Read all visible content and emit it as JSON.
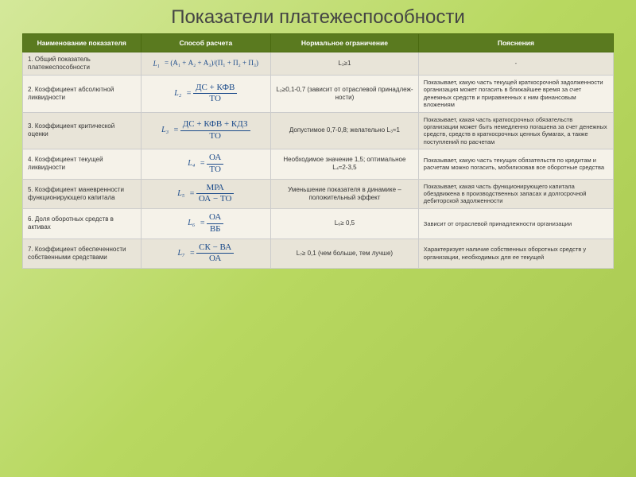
{
  "title": "Показатели платежеспособности",
  "headers": {
    "c1": "Наименование показателя",
    "c2": "Способ расчета",
    "c3": "Нормальное ограничение",
    "c4": "Пояснения"
  },
  "rows": [
    {
      "name": "1. Общий показатель платежеспособности",
      "f_left": "L₁",
      "f_num": "(А₁ + А₂ + А₃)",
      "f_den": "(П₁ + П₂ + П₃)",
      "frac_style": "inline",
      "limit": "L₁≥1",
      "expl": "-",
      "bg": "odd"
    },
    {
      "name": "2. Коэффициент абсолютной ликвидности",
      "f_left": "L₂",
      "f_num": "ДС + КФВ",
      "f_den": "ТО",
      "frac_style": "block",
      "limit": "L₂≥0,1-0,7 (зависит от отраслевой принадлеж-ности)",
      "expl": "Показывает, какую часть текущей краткосрочной задолженности организация может погасить в ближайшее время за счет денежных средств и приравненных к ним финансовым вложениям",
      "bg": "even"
    },
    {
      "name": "3. Коэффициент критической оценки",
      "f_left": "L₃",
      "f_num": "ДС + КФВ + КДЗ",
      "f_den": "ТО",
      "frac_style": "block",
      "limit": "Допустимое 0,7-0,8; желательно L₃≈1",
      "expl": "Показывает, какая часть краткосрочных обязательств организации может быть немедленно погашена за счет денежных средств, средств в краткосрочных ценных бумагах, а также поступлений по расчетам",
      "bg": "odd"
    },
    {
      "name": "4. Коэффициент текущей ликвидности",
      "f_left": "L₄",
      "f_num": "ОА",
      "f_den": "ТО",
      "frac_style": "block",
      "limit": "Необходимое значение 1,5; оптимальное L₄≈2-3,5",
      "expl": "Показывает, какую часть текущих обязательств по кредитам и расчетам можно погасить, мобилизовав все оборотные средства",
      "bg": "even"
    },
    {
      "name": "5. Коэффициент маневренности функционирующего капитала",
      "f_left": "L₅",
      "f_num": "МРА",
      "f_den": "ОА − ТО",
      "frac_style": "block",
      "limit": "Уменьшение показателя в динамике – положительный эффект",
      "expl": "Показывает, какая часть функционирующего капитала обездвижена в производственных запасах и долгосрочной дебиторской задолженности",
      "bg": "odd"
    },
    {
      "name": "6. Доля оборотных средств в активах",
      "f_left": "L₆",
      "f_num": "ОА",
      "f_den": "ВБ",
      "frac_style": "block",
      "limit": "L₆≥ 0,5",
      "expl": "Зависит от отраслевой принадлежности организации",
      "bg": "even"
    },
    {
      "name": "7. Коэффициент обеспеченности собственными средствами",
      "f_left": "L₇",
      "f_num": "СК − ВА",
      "f_den": "ОА",
      "frac_style": "block",
      "limit": "L₇≥ 0,1 (чем больше, тем лучше)",
      "expl": "Характеризует наличие собственных оборотных средств у организации, необходимых для ее текущей",
      "bg": "odd"
    }
  ],
  "colors": {
    "header_bg": "#5a7a1f",
    "header_text": "#ffffff",
    "row_odd": "#e8e4d8",
    "row_even": "#f5f2e9",
    "formula_color": "#1a4a8a",
    "page_bg_from": "#d4e89a",
    "page_bg_to": "#a8c850"
  }
}
